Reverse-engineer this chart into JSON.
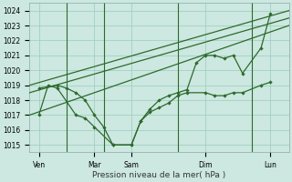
{
  "bg_color": "#cce8e0",
  "grid_color": "#99ccbb",
  "line_color": "#2d6a2d",
  "ylim": [
    1014.5,
    1024.5
  ],
  "xlim": [
    0,
    14
  ],
  "ylabel_ticks": [
    1015,
    1016,
    1017,
    1018,
    1019,
    1020,
    1021,
    1022,
    1023,
    1024
  ],
  "xlabel": "Pression niveau de la mer( hPa )",
  "xtick_positions": [
    0.5,
    3.5,
    5.5,
    9.5,
    13.0
  ],
  "xtick_labels": [
    "Ven",
    "Mar",
    "Sam",
    "Dim",
    "Lun"
  ],
  "vline_positions": [
    2,
    4,
    8,
    12
  ],
  "trend1_x": [
    0,
    14
  ],
  "trend1_y": [
    1019.0,
    1024.0
  ],
  "trend2_x": [
    0,
    14
  ],
  "trend2_y": [
    1018.5,
    1023.5
  ],
  "trend3_x": [
    0,
    14
  ],
  "trend3_y": [
    1017.0,
    1023.0
  ],
  "data1_x": [
    0.5,
    1.5,
    2.0,
    2.5,
    3.0,
    3.5,
    4.0,
    4.5,
    5.5,
    6.0,
    6.5,
    7.0,
    7.5,
    8.0,
    8.5,
    9.5,
    10.0,
    10.5,
    11.0,
    11.5,
    12.5,
    13.0
  ],
  "data1_y": [
    1018.8,
    1019.0,
    1018.8,
    1018.5,
    1018.0,
    1017.0,
    1016.2,
    1015.0,
    1015.0,
    1016.6,
    1017.2,
    1017.5,
    1017.8,
    1018.3,
    1018.5,
    1018.5,
    1018.3,
    1018.3,
    1018.5,
    1018.5,
    1019.0,
    1019.2
  ],
  "data2_x": [
    0.5,
    1.0,
    1.5,
    2.5,
    3.0,
    3.5,
    4.5,
    5.5,
    6.0,
    6.5,
    7.0,
    7.5,
    8.0,
    8.5,
    9.0,
    9.5,
    10.0,
    10.5,
    11.0,
    11.5,
    12.5,
    13.0
  ],
  "data2_y": [
    1017.0,
    1019.0,
    1018.8,
    1017.0,
    1016.8,
    1016.2,
    1015.0,
    1015.0,
    1016.6,
    1017.4,
    1018.0,
    1018.3,
    1018.5,
    1018.7,
    1020.5,
    1021.0,
    1021.0,
    1020.8,
    1021.0,
    1019.8,
    1021.5,
    1023.8
  ]
}
